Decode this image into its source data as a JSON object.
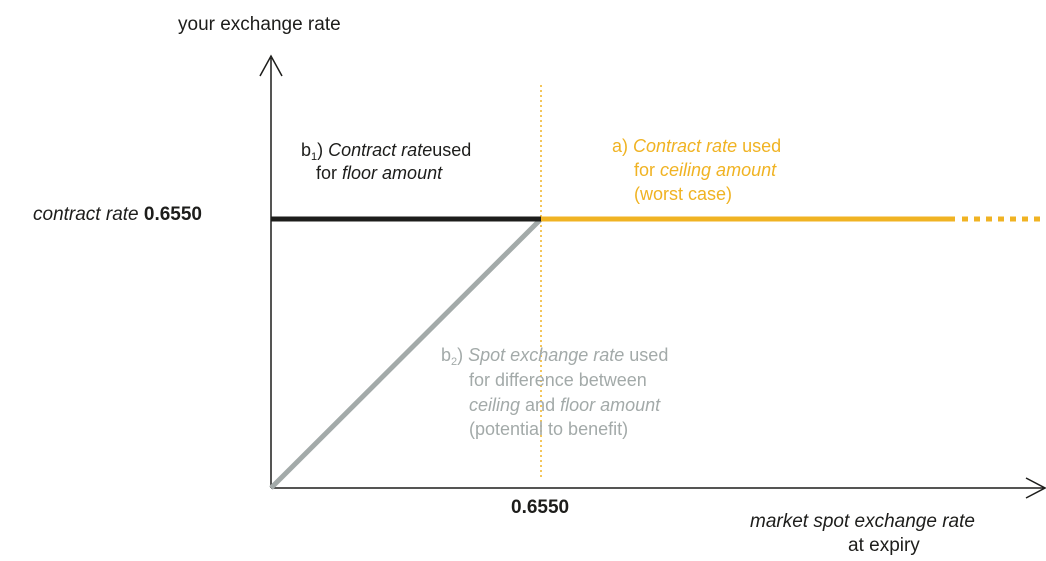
{
  "colors": {
    "floor_line": "#1d1d1b",
    "ceiling_line": "#f0b323",
    "spot_line": "#a3aaa9",
    "axis": "#1d1d1b"
  },
  "axes": {
    "y_label": "your exchange rate",
    "x_label_line1": "market spot exchange rate",
    "x_label_line2": "at expiry",
    "x_tick": "0.6550"
  },
  "contract_rate": {
    "label": "contract rate",
    "value": "0.6550"
  },
  "label_b1": {
    "prefix": "b",
    "sub": "1",
    "suffix": ")",
    "term": "Contract rate",
    "used": "used",
    "for_word": "for",
    "amount": "floor amount"
  },
  "label_a": {
    "prefix": "a)",
    "term": "Contract rate",
    "used": "used",
    "for_word": "for",
    "amount": "ceiling amount",
    "note": "(worst case)"
  },
  "label_b2": {
    "prefix": "b",
    "sub": "2",
    "suffix": ")",
    "term": "Spot exchange rate",
    "used": "used",
    "line2": "for difference between",
    "ceiling": "ceiling",
    "and_word": "and",
    "floor": "floor amount",
    "note": "(potential to benefit)"
  }
}
